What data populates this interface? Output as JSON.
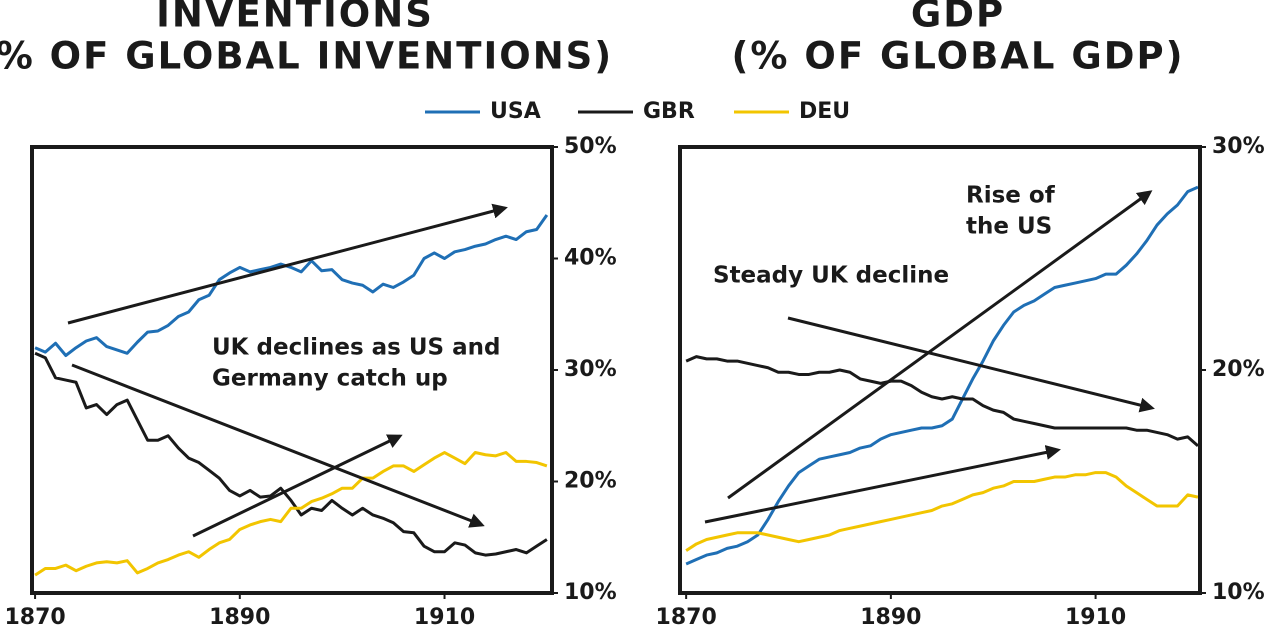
{
  "chart_data": [
    {
      "type": "line",
      "title": "INVENTIONS",
      "subtitle": "(% OF GLOBAL INVENTIONS)",
      "x": [
        1870,
        1871,
        1872,
        1873,
        1874,
        1875,
        1876,
        1877,
        1878,
        1879,
        1880,
        1881,
        1882,
        1883,
        1884,
        1885,
        1886,
        1887,
        1888,
        1889,
        1890,
        1891,
        1892,
        1893,
        1894,
        1895,
        1896,
        1897,
        1898,
        1899,
        1900,
        1901,
        1902,
        1903,
        1904,
        1905,
        1906,
        1907,
        1908,
        1909,
        1910,
        1911,
        1912,
        1913,
        1914,
        1915,
        1916,
        1917,
        1918,
        1919,
        1920
      ],
      "series": [
        {
          "name": "USA",
          "color": "#1f6fb5",
          "values": [
            32.0,
            31.6,
            32.4,
            31.3,
            32.0,
            32.6,
            32.9,
            32.1,
            31.8,
            31.5,
            32.5,
            33.4,
            33.5,
            34.0,
            34.8,
            35.2,
            36.3,
            36.7,
            38.1,
            38.7,
            39.2,
            38.8,
            39.0,
            39.2,
            39.5,
            39.2,
            38.8,
            39.8,
            38.9,
            39.0,
            38.1,
            37.8,
            37.6,
            37.0,
            37.7,
            37.4,
            37.9,
            38.5,
            40.0,
            40.5,
            40.0,
            40.6,
            40.8,
            41.1,
            41.3,
            41.7,
            42.0,
            41.7,
            42.4,
            42.6,
            43.9
          ]
        },
        {
          "name": "GBR",
          "color": "#1a1a1a",
          "values": [
            31.5,
            31.1,
            29.3,
            29.1,
            28.9,
            26.6,
            26.9,
            26.0,
            26.9,
            27.3,
            25.5,
            23.7,
            23.7,
            24.1,
            23.0,
            22.1,
            21.7,
            21.0,
            20.3,
            19.2,
            18.7,
            19.2,
            18.6,
            18.7,
            19.4,
            18.3,
            17.0,
            17.6,
            17.4,
            18.3,
            17.6,
            17.0,
            17.6,
            17.0,
            16.7,
            16.3,
            15.5,
            15.4,
            14.2,
            13.7,
            13.7,
            14.5,
            14.3,
            13.6,
            13.4,
            13.5,
            13.7,
            13.9,
            13.6,
            14.2,
            14.8
          ]
        },
        {
          "name": "DEU",
          "color": "#f2c500",
          "values": [
            11.6,
            12.2,
            12.2,
            12.5,
            12.0,
            12.4,
            12.7,
            12.8,
            12.7,
            12.9,
            11.8,
            12.2,
            12.7,
            13.0,
            13.4,
            13.7,
            13.2,
            13.9,
            14.5,
            14.8,
            15.7,
            16.1,
            16.4,
            16.6,
            16.4,
            17.6,
            17.6,
            18.2,
            18.5,
            18.9,
            19.4,
            19.4,
            20.3,
            20.3,
            20.9,
            21.4,
            21.4,
            20.9,
            21.5,
            22.1,
            22.6,
            22.1,
            21.6,
            22.6,
            22.4,
            22.3,
            22.6,
            21.8,
            21.8,
            21.7,
            21.4
          ]
        }
      ],
      "xlim": [
        1869.7,
        1920.5
      ],
      "xticks": [
        1870,
        1890,
        1910
      ],
      "ylim": [
        10,
        50
      ],
      "yticks": [
        {
          "value": 10,
          "label": "10%"
        },
        {
          "value": 20,
          "label": "20%"
        },
        {
          "value": 30,
          "label": "30%"
        },
        {
          "value": 40,
          "label": "40%"
        },
        {
          "value": 50,
          "label": "50%"
        }
      ],
      "annotations": [
        [
          "UK declines as US and",
          "Germany catch up"
        ]
      ]
    },
    {
      "type": "line",
      "title": "GDP",
      "subtitle": "(% OF GLOBAL GDP)",
      "x": [
        1870,
        1871,
        1872,
        1873,
        1874,
        1875,
        1876,
        1877,
        1878,
        1879,
        1880,
        1881,
        1882,
        1883,
        1884,
        1885,
        1886,
        1887,
        1888,
        1889,
        1890,
        1891,
        1892,
        1893,
        1894,
        1895,
        1896,
        1897,
        1898,
        1899,
        1900,
        1901,
        1902,
        1903,
        1904,
        1905,
        1906,
        1907,
        1908,
        1909,
        1910,
        1911,
        1912,
        1913,
        1914,
        1915,
        1916,
        1917,
        1918,
        1919,
        1920
      ],
      "series": [
        {
          "name": "USA",
          "color": "#1f6fb5",
          "values": [
            11.3,
            11.5,
            11.7,
            11.8,
            12.0,
            12.1,
            12.3,
            12.6,
            13.3,
            14.1,
            14.8,
            15.4,
            15.7,
            16.0,
            16.1,
            16.2,
            16.3,
            16.5,
            16.6,
            16.9,
            17.1,
            17.2,
            17.3,
            17.4,
            17.4,
            17.5,
            17.8,
            18.7,
            19.6,
            20.4,
            21.3,
            22.0,
            22.6,
            22.9,
            23.1,
            23.4,
            23.7,
            23.8,
            23.9,
            24.0,
            24.1,
            24.3,
            24.3,
            24.7,
            25.2,
            25.8,
            26.5,
            27.0,
            27.4,
            28.0,
            28.2
          ]
        },
        {
          "name": "GBR",
          "color": "#1a1a1a",
          "values": [
            20.4,
            20.6,
            20.5,
            20.5,
            20.4,
            20.4,
            20.3,
            20.2,
            20.1,
            19.9,
            19.9,
            19.8,
            19.8,
            19.9,
            19.9,
            20.0,
            19.9,
            19.6,
            19.5,
            19.4,
            19.5,
            19.5,
            19.3,
            19.0,
            18.8,
            18.7,
            18.8,
            18.7,
            18.7,
            18.4,
            18.2,
            18.1,
            17.8,
            17.7,
            17.6,
            17.5,
            17.4,
            17.4,
            17.4,
            17.4,
            17.4,
            17.4,
            17.4,
            17.4,
            17.3,
            17.3,
            17.2,
            17.1,
            16.9,
            17.0,
            16.6
          ]
        },
        {
          "name": "DEU",
          "color": "#f2c500",
          "values": [
            11.9,
            12.2,
            12.4,
            12.5,
            12.6,
            12.7,
            12.7,
            12.7,
            12.6,
            12.5,
            12.4,
            12.3,
            12.4,
            12.5,
            12.6,
            12.8,
            12.9,
            13.0,
            13.1,
            13.2,
            13.3,
            13.4,
            13.5,
            13.6,
            13.7,
            13.9,
            14.0,
            14.2,
            14.4,
            14.5,
            14.7,
            14.8,
            15.0,
            15.0,
            15.0,
            15.1,
            15.2,
            15.2,
            15.3,
            15.3,
            15.4,
            15.4,
            15.2,
            14.8,
            14.5,
            14.2,
            13.9,
            13.9,
            13.9,
            14.4,
            14.3
          ]
        }
      ],
      "xlim": [
        1869.4,
        1920.2
      ],
      "xticks": [
        1870,
        1890,
        1910
      ],
      "ylim": [
        10,
        30
      ],
      "yticks": [
        {
          "value": 10,
          "label": "10%"
        },
        {
          "value": 20,
          "label": "20%"
        },
        {
          "value": 30,
          "label": "30%"
        }
      ],
      "annotations": [
        [
          "Rise of",
          "the US"
        ],
        [
          "Steady UK decline"
        ]
      ]
    }
  ]
}
